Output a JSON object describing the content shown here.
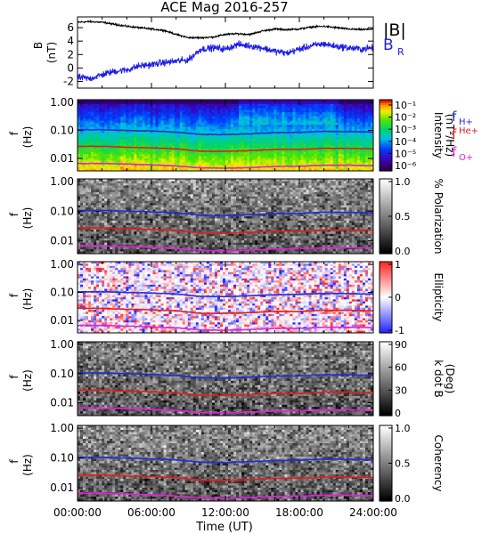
{
  "title": "ACE Mag 2016-257",
  "xlabel": "Time (UT)",
  "x_ticks": [
    "00:00:00",
    "06:00:00",
    "12:00:00",
    "18:00:00",
    "24:00:00"
  ],
  "freq_ticks": [
    "1.00",
    "0.10",
    "0.01"
  ],
  "freq_axis_label": "f",
  "freq_axis_unit": "(Hz)",
  "colors": {
    "B_total": "#000000",
    "B_R": "#1f1fe6",
    "f_H": "#1f2fd6",
    "f_He": "#e01e1e",
    "f_O": "#e020e0"
  },
  "chart_data": [
    {
      "type": "line",
      "panel": "B",
      "ylabel": "B",
      "yunit": "(nT)",
      "y_ticks": [
        "6",
        "4",
        "2",
        "0",
        "-2"
      ],
      "ylim": [
        -3,
        7.6
      ],
      "xlim": [
        0,
        24
      ],
      "legend": {
        "placement": "right",
        "labels": [
          "|B|",
          "B"
        ],
        "sub": "R"
      },
      "series": [
        {
          "name": "|B|",
          "x": [
            0,
            1,
            2,
            3,
            4,
            5,
            6,
            7,
            8,
            9,
            10,
            11,
            12,
            13,
            14,
            15,
            16,
            17,
            18,
            19,
            20,
            21,
            22,
            23,
            24
          ],
          "values": [
            6.8,
            6.9,
            6.8,
            6.5,
            6.2,
            6.0,
            5.8,
            5.6,
            5.0,
            4.5,
            4.5,
            4.6,
            5.0,
            5.1,
            5.0,
            5.5,
            5.8,
            5.7,
            5.8,
            6.1,
            6.2,
            6.0,
            5.8,
            5.7,
            5.8
          ]
        },
        {
          "name": "B_R",
          "x": [
            0,
            1,
            2,
            3,
            4,
            5,
            6,
            7,
            8,
            9,
            10,
            11,
            12,
            13,
            14,
            15,
            16,
            17,
            18,
            19,
            20,
            21,
            22,
            23,
            24
          ],
          "values": [
            -1.4,
            -1.6,
            -1.0,
            -0.5,
            -0.3,
            0.3,
            0.5,
            0.8,
            1.0,
            1.2,
            2.8,
            3.0,
            2.8,
            3.5,
            3.3,
            3.0,
            2.5,
            2.2,
            2.8,
            3.3,
            3.6,
            3.2,
            3.0,
            2.8,
            3.0
          ]
        }
      ]
    },
    {
      "type": "heatmap",
      "panel": "intensity",
      "colorbar_label": "Intensity",
      "colorbar_unit": "(nT²/Hz)",
      "colorbar_ticks": [
        "10⁻¹",
        "10⁻²",
        "10⁻³",
        "10⁻⁴",
        "10⁻⁵",
        "10⁻⁶"
      ],
      "colorscale": "rainbow",
      "legend_labels": [
        "f",
        "f",
        "f"
      ],
      "legend_subs": [
        "H+",
        "He+",
        "O+"
      ]
    },
    {
      "type": "heatmap",
      "panel": "polarization",
      "colorbar_label": "% Polarization",
      "colorbar_ticks": [
        "1.0",
        "0.5",
        "0.0"
      ],
      "colorscale": "gray"
    },
    {
      "type": "heatmap",
      "panel": "ellipticity",
      "colorbar_label": "Ellipticity",
      "colorbar_ticks": [
        "1",
        "0",
        "-1"
      ],
      "colorscale": "blue-white-red"
    },
    {
      "type": "heatmap",
      "panel": "kdotb",
      "colorbar_label": "k dot B",
      "colorbar_unit": "(Deg)",
      "colorbar_ticks": [
        "90",
        "60",
        "30",
        "0"
      ],
      "colorscale": "gray"
    },
    {
      "type": "heatmap",
      "panel": "coherency",
      "colorbar_label": "Coherency",
      "colorbar_ticks": [
        "1.0",
        "0.5",
        "0.0"
      ],
      "colorscale": "gray"
    }
  ],
  "gyrofrequency_lines": {
    "x": [
      0,
      2,
      4,
      6,
      8,
      10,
      12,
      14,
      16,
      18,
      20,
      22,
      24
    ],
    "f_H": [
      0.105,
      0.106,
      0.1,
      0.095,
      0.087,
      0.072,
      0.071,
      0.076,
      0.083,
      0.085,
      0.092,
      0.091,
      0.087
    ],
    "f_He": [
      0.027,
      0.027,
      0.025,
      0.024,
      0.022,
      0.018,
      0.018,
      0.019,
      0.021,
      0.021,
      0.023,
      0.023,
      0.022
    ],
    "f_O": [
      0.0066,
      0.0066,
      0.0063,
      0.0059,
      0.0054,
      0.0046,
      0.0045,
      0.0047,
      0.0052,
      0.0053,
      0.0057,
      0.0057,
      0.0055
    ]
  }
}
